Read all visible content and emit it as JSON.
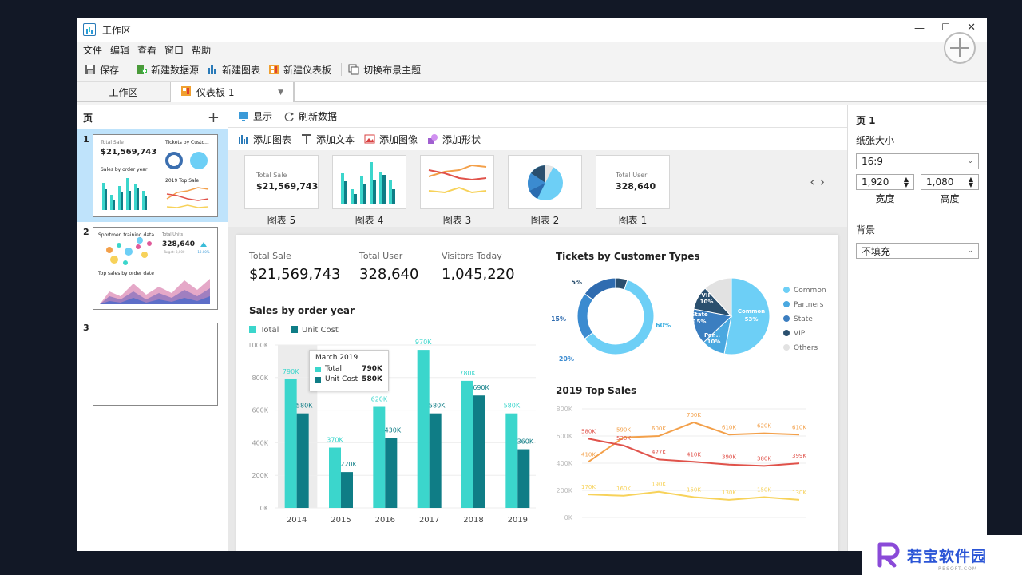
{
  "window": {
    "title": "工作区"
  },
  "menu": [
    "文件",
    "编辑",
    "查看",
    "窗口",
    "帮助"
  ],
  "toolbar": {
    "save": "保存",
    "new_datasource": "新建数据源",
    "new_chart": "新建图表",
    "new_dashboard": "新建仪表板",
    "switch_theme": "切换布景主题"
  },
  "tabs": {
    "workspace": "工作区",
    "dashboard": "仪表板 1"
  },
  "pages": {
    "title": "页",
    "items": [
      {
        "num": "1",
        "kpi_label": "Total Sale",
        "kpi_value": "$21,569,743",
        "chart1": "Tickets by Custo...",
        "chart2": "Sales by order year",
        "chart3": "2019 Top Sale"
      },
      {
        "num": "2",
        "chart1": "Sportmen training data",
        "kpi_label": "Total Units",
        "kpi_value": "328,640",
        "target": "Target: 3,000",
        "delta": "+10.00%",
        "chart2": "Top sales by order date"
      },
      {
        "num": "3"
      }
    ]
  },
  "center_toolbar": {
    "show": "显示",
    "refresh": "刷新数据"
  },
  "insert_toolbar": {
    "add_chart": "添加图表",
    "add_text": "添加文本",
    "add_image": "添加图像",
    "add_shape": "添加形状"
  },
  "gallery": [
    {
      "label": "图表 5",
      "kpi_label": "Total Sale",
      "kpi_value": "$21,569,743"
    },
    {
      "label": "图表 4"
    },
    {
      "label": "图表 3"
    },
    {
      "label": "图表 2"
    },
    {
      "label": "图表 1",
      "kpi_label": "Total User",
      "kpi_value": "328,640"
    }
  ],
  "dashboard": {
    "kpis": [
      {
        "label": "Total Sale",
        "value": "$21,569,743"
      },
      {
        "label": "Total User",
        "value": "328,640"
      },
      {
        "label": "Visitors Today",
        "value": "1,045,220"
      }
    ],
    "sales_title": "Sales by order year",
    "tickets_title": "Tickets by Customer Types",
    "top_sales_title": "2019 Top Sales",
    "tooltip": {
      "title": "March 2019",
      "total_label": "Total",
      "total_value": "790K",
      "unit_label": "Unit Cost",
      "unit_value": "580K"
    }
  },
  "properties": {
    "title": "页 1",
    "paper_label": "纸张大小",
    "paper_value": "16:9",
    "width_value": "1,920",
    "height_value": "1,080",
    "width_label": "宽度",
    "height_label": "高度",
    "bg_label": "背景",
    "bg_value": "不填充"
  },
  "watermark": {
    "text": "若宝软件园",
    "sub": "RBSOFT.COM"
  },
  "colors": {
    "teal": "#3bd6cc",
    "dark_teal": "#0f7d86",
    "orange": "#f3a04a",
    "red": "#e0524a",
    "yellow": "#f7d25a",
    "light_blue": "#6dcff6",
    "mid_blue": "#3b8bd0",
    "navy": "#2a4f6e"
  },
  "chart_data": [
    {
      "type": "bar",
      "title": "Sales by order year",
      "categories": [
        "2014",
        "2015",
        "2016",
        "2017",
        "2018",
        "2019"
      ],
      "series": [
        {
          "name": "Total",
          "values": [
            790,
            370,
            620,
            970,
            780,
            580
          ],
          "labels": [
            "790K",
            "370K",
            "620K",
            "970K",
            "780K",
            "580K"
          ]
        },
        {
          "name": "Unit Cost",
          "values": [
            580,
            220,
            430,
            580,
            690,
            360
          ],
          "labels": [
            "580K",
            "220K",
            "430K",
            "580K",
            "690K",
            "360K"
          ]
        }
      ],
      "ylim": [
        0,
        1000
      ],
      "yticks": [
        "0K",
        "200K",
        "400K",
        "600K",
        "800K",
        "1000K"
      ],
      "legend": "top-left"
    },
    {
      "type": "pie",
      "variant": "donut",
      "title": "Tickets by Customer Types",
      "slices": [
        {
          "name": "Common",
          "value": 60,
          "label": "60%"
        },
        {
          "name": "Partners",
          "value": 20,
          "label": "20%"
        },
        {
          "name": "State",
          "value": 15,
          "label": "15%"
        },
        {
          "name": "VIP",
          "value": 5,
          "label": "5%"
        }
      ]
    },
    {
      "type": "pie",
      "title": "Tickets by Customer Types",
      "slices": [
        {
          "name": "Common",
          "value": 53,
          "label": "53%"
        },
        {
          "name": "Partners",
          "value": 10,
          "label": "10%"
        },
        {
          "name": "State",
          "value": 15,
          "label": "15%"
        },
        {
          "name": "VIP",
          "value": 10,
          "label": "10%"
        },
        {
          "name": "Others",
          "value": 12,
          "label": ""
        }
      ],
      "slice_texts": {
        "common": "Common",
        "state": "State",
        "vip": "VIP",
        "partners": "Par..."
      },
      "legend": [
        "Common",
        "Partners",
        "State",
        "VIP",
        "Others"
      ]
    },
    {
      "type": "line",
      "title": "2019 Top Sales",
      "ylim": [
        0,
        800
      ],
      "yticks": [
        "0K",
        "200K",
        "400K",
        "600K",
        "800K"
      ],
      "series": [
        {
          "name": "orange",
          "values": [
            410,
            590,
            600,
            700,
            610,
            620,
            610
          ],
          "labels": [
            "410K",
            "590K",
            "600K",
            "700K",
            "610K",
            "620K",
            "610K"
          ]
        },
        {
          "name": "red",
          "values": [
            580,
            530,
            427,
            410,
            390,
            380,
            399
          ],
          "labels": [
            "580K",
            "530K",
            "427K",
            "410K",
            "390K",
            "380K",
            "399K"
          ]
        },
        {
          "name": "yellow",
          "values": [
            170,
            160,
            190,
            150,
            130,
            150,
            130
          ],
          "labels": [
            "170K",
            "160K",
            "190K",
            "150K",
            "130K",
            "150K",
            "130K"
          ]
        }
      ]
    }
  ]
}
